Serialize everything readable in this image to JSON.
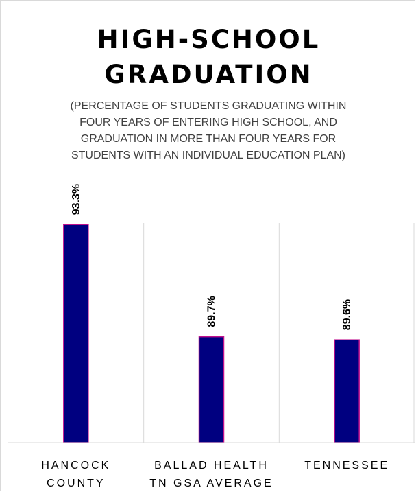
{
  "title_lines": [
    "HIGH-SCHOOL",
    "GRADUATION"
  ],
  "subtitle_lines": [
    "(PERCENTAGE OF STUDENTS GRADUATING WITHIN",
    "FOUR YEARS OF ENTERING HIGH SCHOOL, AND",
    "GRADUATION IN MORE THAN FOUR YEARS FOR",
    "STUDENTS WITH AN INDIVIDUAL EDUCATION PLAN)"
  ],
  "colors": {
    "bar_fill": "#000080",
    "bar_stroke": "#c0108c",
    "gridline": "#d9d9d9"
  },
  "chart_data": {
    "type": "bar",
    "categories": [
      [
        "HANCOCK",
        "COUNTY"
      ],
      [
        "BALLAD HEALTH",
        "TN GSA AVERAGE"
      ],
      [
        "TENNESSEE"
      ]
    ],
    "values": [
      93.3,
      89.7,
      89.6
    ],
    "data_labels": [
      "93.3%",
      "89.7%",
      "89.6%"
    ],
    "ylim": [
      86.3,
      93.9
    ],
    "grid": "vertical separators between categories",
    "legend": "none"
  }
}
